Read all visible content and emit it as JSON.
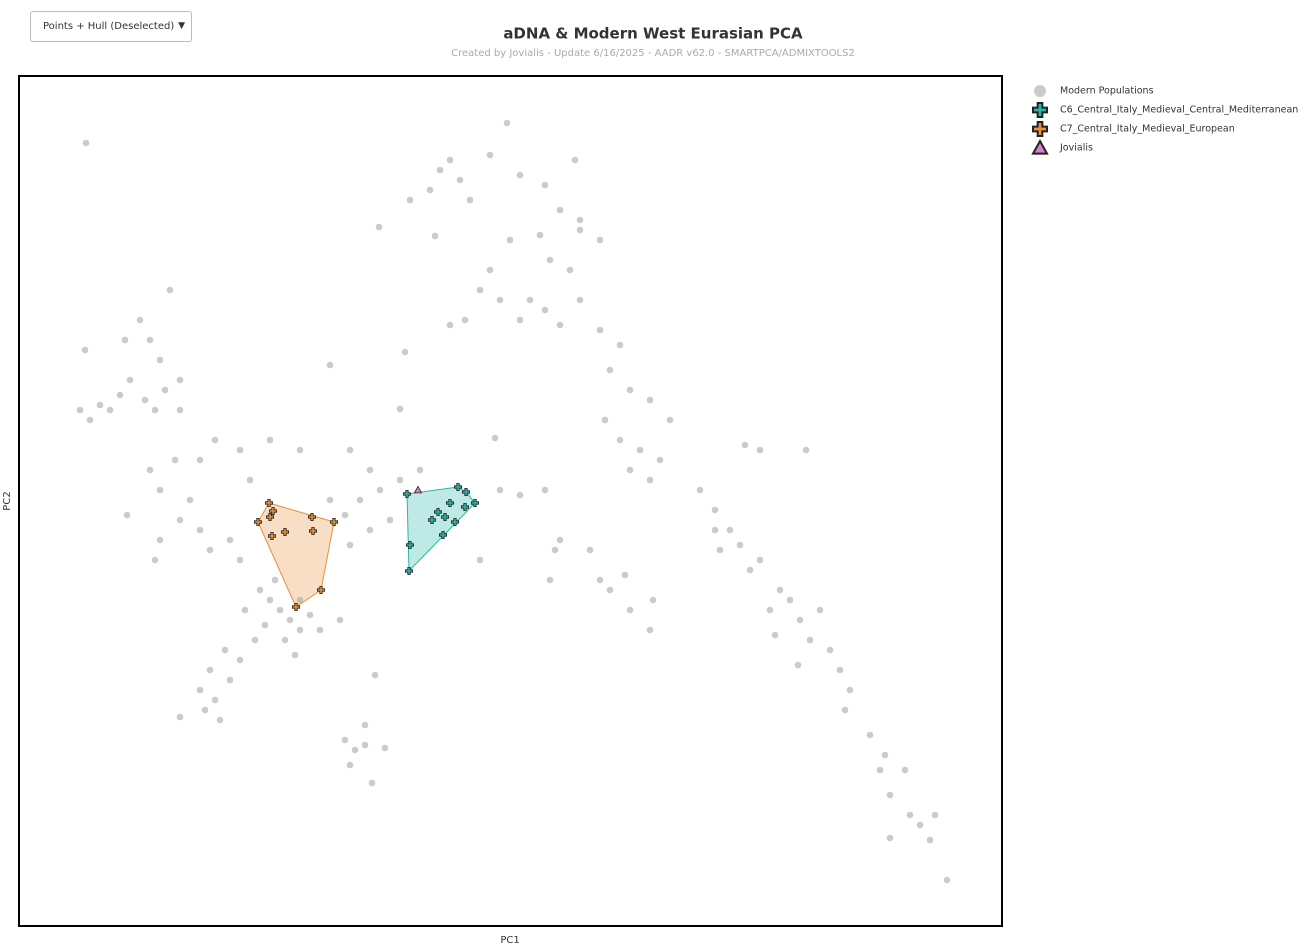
{
  "dropdown_label": "Points + Hull (Deselected)",
  "chart_data": {
    "type": "scatter",
    "title": "aDNA & Modern West Eurasian PCA",
    "subtitle": "Created by Jovialis - Update 6/16/2025 - AADR v62.0 - SMARTPCA/ADMIXTOOLS2",
    "x_label": "PC1",
    "y_label": "PC2",
    "xlim": [
      0,
      983
    ],
    "ylim": [
      0,
      850
    ],
    "legend": "outside-right",
    "series": [
      {
        "name": "Modern Populations",
        "color": "#a0a0a0",
        "marker": "circle",
        "hull": false,
        "x": [
          421,
          431,
          441,
          411,
          451,
          471,
          488,
          501,
          526,
          556,
          541,
          561,
          581,
          521,
          491,
          531,
          551,
          471,
          461,
          481,
          511,
          501,
          526,
          561,
          541,
          431,
          446,
          581,
          601,
          591,
          611,
          631,
          651,
          586,
          601,
          621,
          641,
          611,
          631,
          561,
          391,
          360,
          416,
          386,
          381,
          67,
          121,
          131,
          141,
          111,
          126,
          136,
          101,
          81,
          61,
          71,
          151,
          146,
          161,
          66,
          161,
          91,
          106,
          131,
          141,
          156,
          181,
          196,
          221,
          161,
          181,
          191,
          211,
          221,
          141,
          108,
          136,
          171,
          231,
          251,
          281,
          241,
          251,
          261,
          271,
          281,
          246,
          291,
          301,
          266,
          276,
          236,
          256,
          321,
          281,
          226,
          191,
          181,
          196,
          201,
          211,
          221,
          161,
          206,
          186,
          326,
          336,
          346,
          331,
          366,
          353,
          346,
          356,
          311,
          331,
          351,
          341,
          361,
          371,
          331,
          351,
          381,
          311,
          326,
          401,
          481,
          501,
          526,
          536,
          541,
          571,
          581,
          591,
          606,
          611,
          631,
          634,
          531,
          461,
          476,
          681,
          696,
          711,
          726,
          741,
          787,
          701,
          721,
          741,
          731,
          761,
          771,
          751,
          781,
          801,
          791,
          811,
          821,
          831,
          826,
          851,
          866,
          861,
          871,
          886,
          891,
          901,
          916,
          911,
          871,
          928,
          756,
          779,
          696
        ],
        "y": [
          756,
          766,
          746,
          736,
          726,
          771,
          803,
          751,
          741,
          766,
          716,
          706,
          686,
          691,
          686,
          666,
          656,
          656,
          636,
          626,
          626,
          606,
          616,
          626,
          601,
          601,
          606,
          596,
          581,
          556,
          536,
          526,
          506,
          506,
          486,
          476,
          466,
          456,
          446,
          696,
          726,
          699,
          690,
          574,
          517,
          783,
          606,
          586,
          566,
          546,
          526,
          516,
          531,
          521,
          516,
          506,
          636,
          536,
          516,
          576,
          546,
          516,
          586,
          456,
          436,
          466,
          466,
          486,
          476,
          406,
          396,
          376,
          386,
          366,
          386,
          411,
          366,
          426,
          446,
          486,
          476,
          336,
          326,
          316,
          306,
          296,
          301,
          311,
          296,
          286,
          271,
          286,
          346,
          306,
          326,
          316,
          256,
          236,
          226,
          206,
          246,
          266,
          209,
          276,
          216,
          186,
          176,
          181,
          161,
          178,
          143,
          201,
          251,
          561,
          476,
          456,
          426,
          436,
          406,
          381,
          396,
          446,
          426,
          411,
          456,
          436,
          431,
          436,
          376,
          386,
          376,
          346,
          336,
          351,
          316,
          296,
          326,
          346,
          366,
          488,
          436,
          416,
          396,
          481,
          476,
          476,
          376,
          381,
          366,
          356,
          336,
          326,
          316,
          306,
          316,
          286,
          276,
          256,
          236,
          216,
          191,
          171,
          156,
          131,
          156,
          111,
          101,
          111,
          86,
          88,
          46,
          291,
          261,
          396
        ]
      },
      {
        "name": "C6_Central_Italy_Medieval_Central_Mediterranean",
        "color": "#2ab7a9",
        "marker": "cross",
        "hull": true,
        "x": [
          388,
          439,
          447,
          456,
          431,
          446,
          419,
          426,
          436,
          413,
          424,
          391,
          390
        ],
        "y": [
          432,
          439,
          434,
          423,
          423,
          419,
          414,
          409,
          404,
          406,
          391,
          381,
          355
        ]
      },
      {
        "name": "C7_Central_Italy_Medieval_European",
        "color": "#e8913a",
        "marker": "cross",
        "hull": true,
        "x": [
          250,
          254,
          251,
          239,
          293,
          315,
          266,
          253,
          294,
          302,
          277
        ],
        "y": [
          423,
          415,
          409,
          404,
          409,
          404,
          394,
          390,
          395,
          336,
          319
        ]
      },
      {
        "name": "Jovialis",
        "color": "#d77fc9",
        "marker": "triangle",
        "hull": false,
        "x": [
          399
        ],
        "y": [
          436
        ]
      }
    ]
  }
}
